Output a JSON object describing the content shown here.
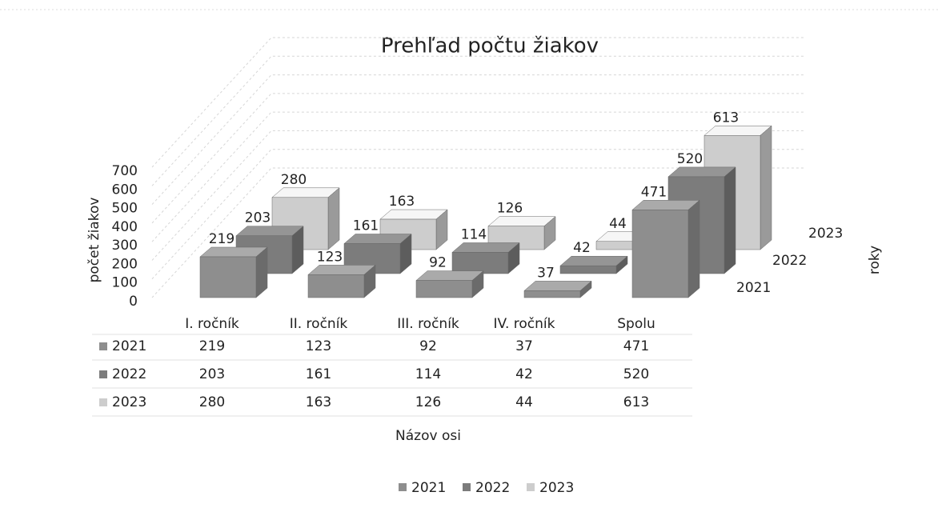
{
  "chart_data": {
    "type": "bar3d",
    "title": "Prehľad počtu žiakov",
    "y_label": "počet žiakov",
    "x_label": "Názov osi",
    "depth_label": "roky",
    "categories": [
      "I. ročník",
      "II. ročník",
      "III. ročník",
      "IV. ročník",
      "Spolu"
    ],
    "series": [
      {
        "name": "2021",
        "color": "#8e8e8e",
        "values": [
          219,
          123,
          92,
          37,
          471
        ]
      },
      {
        "name": "2022",
        "color": "#7c7c7c",
        "values": [
          203,
          161,
          114,
          42,
          520
        ]
      },
      {
        "name": "2023",
        "color": "#cdcdcd",
        "values": [
          280,
          163,
          126,
          44,
          613
        ]
      }
    ],
    "ylim": [
      0,
      700
    ],
    "yticks": [
      0,
      100,
      200,
      300,
      400,
      500,
      600,
      700
    ],
    "grid": true,
    "data_table": true,
    "legend": "bottom"
  }
}
